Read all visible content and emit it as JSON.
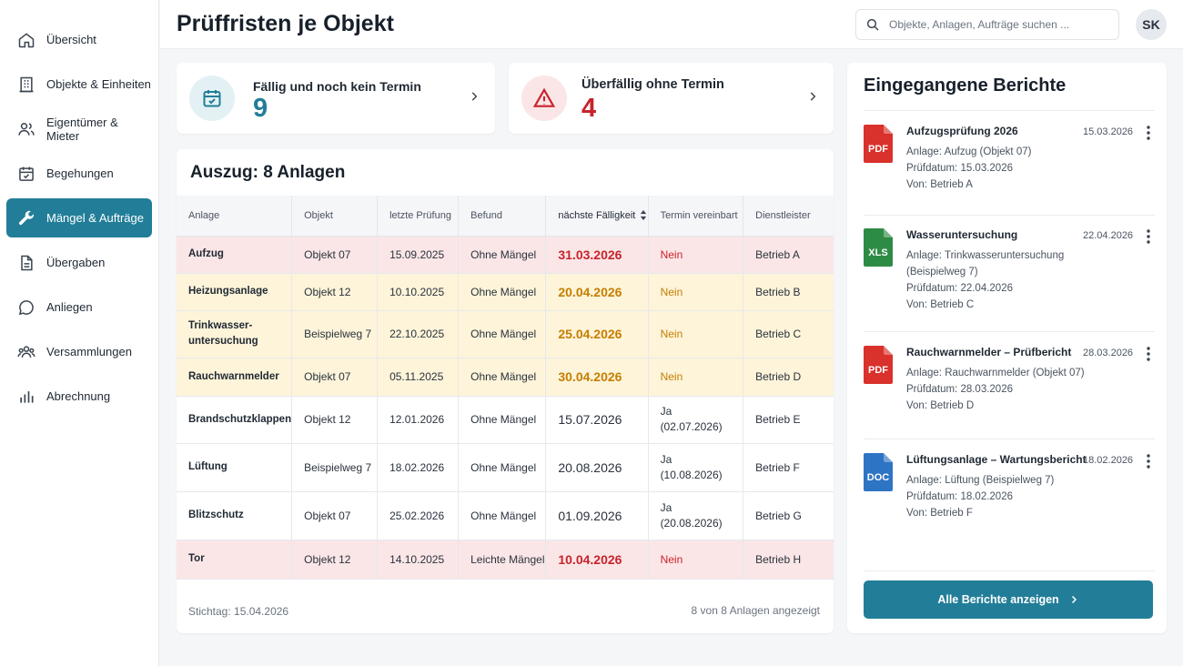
{
  "sidebar": {
    "items": [
      {
        "label": "Übersicht",
        "icon": "home-icon"
      },
      {
        "label": "Objekte & Einheiten",
        "icon": "building-icon"
      },
      {
        "label": "Eigentümer & Mieter",
        "icon": "users-icon"
      },
      {
        "label": "Begehungen",
        "icon": "calendar-icon"
      },
      {
        "label": "Mängel & Aufträge",
        "icon": "wrench-icon",
        "active": true
      },
      {
        "label": "Übergaben",
        "icon": "document-icon"
      },
      {
        "label": "Anliegen",
        "icon": "chat-icon"
      },
      {
        "label": "Versammlungen",
        "icon": "group-icon"
      },
      {
        "label": "Abrechnung",
        "icon": "bar-chart-icon"
      }
    ]
  },
  "header": {
    "title": "Prüffristen je Objekt",
    "search_placeholder": "Objekte, Anlagen, Aufträge suchen ...",
    "avatar_initials": "SK"
  },
  "kpis": [
    {
      "label": "Fällig und noch kein Termin",
      "value": "9",
      "color": "#227e98"
    },
    {
      "label": "Überfällig ohne Termin",
      "value": "4",
      "color": "#c8232c"
    }
  ],
  "table": {
    "title": "Auszug: 8 Anlagen",
    "columns": [
      "Anlage",
      "Objekt",
      "letzte Prüfung",
      "Befund",
      "nächste Fälligkeit",
      "Termin vereinbart",
      "Dienstleister"
    ],
    "rows": [
      {
        "anlage": "Aufzug",
        "objekt": "Objekt 07",
        "letzte": "15.09.2025",
        "befund": "Ohne Mängel",
        "faellig": "31.03.2026",
        "termin": "Nein",
        "termin_datum": "",
        "dienst": "Betrieb A",
        "status": "red"
      },
      {
        "anlage": "Heizungsanlage",
        "objekt": "Objekt 12",
        "letzte": "10.10.2025",
        "befund": "Ohne Mängel",
        "faellig": "20.04.2026",
        "termin": "Nein",
        "termin_datum": "",
        "dienst": "Betrieb B",
        "status": "yellow"
      },
      {
        "anlage": "Trinkwasser-untersuchung",
        "objekt": "Beispielweg 7",
        "letzte": "22.10.2025",
        "befund": "Ohne Mängel",
        "faellig": "25.04.2026",
        "termin": "Nein",
        "termin_datum": "",
        "dienst": "Betrieb C",
        "status": "yellow"
      },
      {
        "anlage": "Rauchwarnmelder",
        "objekt": "Objekt 07",
        "letzte": "05.11.2025",
        "befund": "Ohne Mängel",
        "faellig": "30.04.2026",
        "termin": "Nein",
        "termin_datum": "",
        "dienst": "Betrieb D",
        "status": "yellow"
      },
      {
        "anlage": "Brandschutzklappen",
        "objekt": "Objekt 12",
        "letzte": "12.01.2026",
        "befund": "Ohne Mängel",
        "faellig": "15.07.2026",
        "termin": "Ja",
        "termin_datum": "(02.07.2026)",
        "dienst": "Betrieb E",
        "status": "none"
      },
      {
        "anlage": "Lüftung",
        "objekt": "Beispielweg 7",
        "letzte": "18.02.2026",
        "befund": "Ohne Mängel",
        "faellig": "20.08.2026",
        "termin": "Ja",
        "termin_datum": "(10.08.2026)",
        "dienst": "Betrieb F",
        "status": "none"
      },
      {
        "anlage": "Blitzschutz",
        "objekt": "Objekt 07",
        "letzte": "25.02.2026",
        "befund": "Ohne Mängel",
        "faellig": "01.09.2026",
        "termin": "Ja",
        "termin_datum": "(20.08.2026)",
        "dienst": "Betrieb G",
        "status": "none"
      },
      {
        "anlage": "Tor",
        "objekt": "Objekt 12",
        "letzte": "14.10.2025",
        "befund": "Leichte Mängel",
        "faellig": "10.04.2026",
        "termin": "Nein",
        "termin_datum": "",
        "dienst": "Betrieb H",
        "status": "red"
      }
    ],
    "stichtag": "Stichtag: 15.04.2026",
    "count": "8 von 8 Anlagen angezeigt"
  },
  "reports": {
    "title": "Eingegangene Berichte",
    "items": [
      {
        "type": "PDF",
        "color": "#d9312b",
        "name": "Aufzugsprüfung 2026",
        "date": "15.03.2026",
        "lines": [
          "Anlage: Aufzug (Objekt 07)",
          "Prüfdatum: 15.03.2026",
          "Von: Betrieb A"
        ]
      },
      {
        "type": "XLS",
        "color": "#2e8b45",
        "name": "Wasseruntersuchung",
        "date": "22.04.2026",
        "lines": [
          "Anlage: Trinkwasseruntersuchung (Beispielweg 7)",
          "Prüfdatum: 22.04.2026",
          "Von: Betrieb C"
        ]
      },
      {
        "type": "PDF",
        "color": "#d9312b",
        "name": "Rauchwarnmelder – Prüfbericht",
        "date": "28.03.2026",
        "lines": [
          "Anlage: Rauchwarnmelder (Objekt 07)",
          "Prüfdatum: 28.03.2026",
          "Von: Betrieb D"
        ]
      },
      {
        "type": "DOC",
        "color": "#2e74c4",
        "name": "Lüftungsanlage – Wartungsbericht",
        "date": "18.02.2026",
        "lines": [
          "Anlage: Lüftung (Beispielweg 7)",
          "Prüfdatum: 18.02.2026",
          "Von: Betrieb F"
        ]
      }
    ],
    "button_label": "Alle Berichte anzeigen"
  }
}
